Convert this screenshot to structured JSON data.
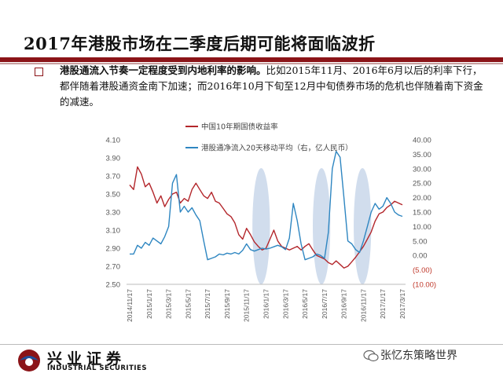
{
  "slide": {
    "title": "2017年港股市场在二季度后期可能将面临波折",
    "bullet_bold": "港股通流入节奏一定程度受到内地利率的影响。",
    "bullet_text": "比如2015年11月、2016年6月以后的利率下行，都伴随着港股通资金南下加速；而2016年10月下旬至12月中旬债券市场的危机也伴随着南下资金的减速。"
  },
  "footer": {
    "logo_cn": "兴业证券",
    "logo_en": "INDUSTRIAL SECURITIES",
    "watermark": "张忆东策略世界"
  },
  "colors": {
    "accent": "#8b1418",
    "series_red": "#b3262b",
    "series_blue": "#2e86c1",
    "highlight": "#c9d7ea"
  },
  "chart_data": {
    "type": "line",
    "legend": [
      "中国10年期国债收益率",
      "港股通净流入20天移动平均（右，亿人民币）"
    ],
    "x_tick_labels": [
      "2014/11/17",
      "2015/1/17",
      "2015/3/17",
      "2015/5/17",
      "2015/7/17",
      "2015/9/17",
      "2015/11/17",
      "2016/1/17",
      "2016/3/17",
      "2016/5/17",
      "2016/7/17",
      "2016/9/17",
      "2016/11/17",
      "2017/1/17",
      "2017/3/17"
    ],
    "left_axis": {
      "min": 2.5,
      "max": 4.1,
      "ticks": [
        "2.50",
        "2.70",
        "2.90",
        "3.10",
        "3.30",
        "3.50",
        "3.70",
        "3.90",
        "4.10"
      ]
    },
    "right_axis": {
      "min": -10,
      "max": 40,
      "ticks": [
        "(10.00)",
        "(5.00)",
        "0.00",
        "5.00",
        "10.00",
        "15.00",
        "20.00",
        "25.00",
        "30.00",
        "35.00",
        "40.00"
      ]
    },
    "series": [
      {
        "name": "中国10年期国债收益率",
        "axis": "left",
        "color": "#b3262b",
        "x": [
          0.0,
          0.2,
          0.4,
          0.6,
          0.8,
          1.0,
          1.2,
          1.4,
          1.6,
          1.8,
          2.0,
          2.2,
          2.4,
          2.6,
          2.8,
          3.0,
          3.2,
          3.4,
          3.6,
          3.8,
          4.0,
          4.2,
          4.4,
          4.6,
          4.8,
          5.0,
          5.2,
          5.4,
          5.6,
          5.8,
          6.0,
          6.2,
          6.4,
          6.6,
          6.8,
          7.0,
          7.2,
          7.4,
          7.6,
          7.8,
          8.0,
          8.2,
          8.4,
          8.6,
          8.8,
          9.0,
          9.2,
          9.4,
          9.6,
          9.8,
          10.0,
          10.2,
          10.4,
          10.6,
          10.8,
          11.0,
          11.2,
          11.4,
          11.6,
          11.8,
          12.0,
          12.2,
          12.4,
          12.6,
          12.8,
          13.0,
          13.2,
          13.4,
          13.6,
          13.8,
          14.0
        ],
        "values": [
          3.6,
          3.55,
          3.8,
          3.72,
          3.58,
          3.62,
          3.52,
          3.4,
          3.48,
          3.36,
          3.44,
          3.5,
          3.52,
          3.4,
          3.45,
          3.42,
          3.55,
          3.62,
          3.55,
          3.48,
          3.45,
          3.52,
          3.42,
          3.4,
          3.34,
          3.28,
          3.25,
          3.18,
          3.05,
          3.0,
          3.12,
          3.05,
          2.97,
          2.92,
          2.88,
          2.9,
          3.0,
          3.1,
          2.98,
          2.92,
          2.9,
          2.88,
          2.9,
          2.92,
          2.88,
          2.92,
          2.95,
          2.88,
          2.82,
          2.8,
          2.78,
          2.74,
          2.72,
          2.76,
          2.72,
          2.68,
          2.7,
          2.75,
          2.8,
          2.86,
          2.92,
          3.0,
          3.08,
          3.2,
          3.28,
          3.3,
          3.35,
          3.38,
          3.42,
          3.4,
          3.38
        ]
      },
      {
        "name": "港股通净流入20天移动平均（右，亿人民币）",
        "axis": "right",
        "color": "#2e86c1",
        "x": [
          0.0,
          0.2,
          0.4,
          0.6,
          0.8,
          1.0,
          1.2,
          1.4,
          1.6,
          1.8,
          2.0,
          2.2,
          2.4,
          2.6,
          2.8,
          3.0,
          3.2,
          3.4,
          3.6,
          3.8,
          4.0,
          4.2,
          4.4,
          4.6,
          4.8,
          5.0,
          5.2,
          5.4,
          5.6,
          5.8,
          6.0,
          6.2,
          6.4,
          6.6,
          6.8,
          7.0,
          7.2,
          7.4,
          7.6,
          7.8,
          8.0,
          8.2,
          8.4,
          8.6,
          8.8,
          9.0,
          9.2,
          9.4,
          9.6,
          9.8,
          10.0,
          10.2,
          10.4,
          10.6,
          10.8,
          11.0,
          11.2,
          11.4,
          11.6,
          11.8,
          12.0,
          12.2,
          12.4,
          12.6,
          12.8,
          13.0,
          13.2,
          13.4,
          13.6,
          13.8,
          14.0
        ],
        "values": [
          0.5,
          0.5,
          3.5,
          2.5,
          4.5,
          3.5,
          6.0,
          5.0,
          4.0,
          6.5,
          10.0,
          25.0,
          28.0,
          15.0,
          17.0,
          15.0,
          16.5,
          14.0,
          12.0,
          5.0,
          -1.5,
          -1.0,
          -0.5,
          0.5,
          0.2,
          0.8,
          0.5,
          1.0,
          0.5,
          1.8,
          4.0,
          2.0,
          1.5,
          2.0,
          2.5,
          2.2,
          2.5,
          3.0,
          3.5,
          3.0,
          2.0,
          6.0,
          18.0,
          12.0,
          4.0,
          -1.5,
          -1.0,
          -0.5,
          0.5,
          0.0,
          -1.0,
          8.0,
          30.0,
          36.0,
          34.0,
          20.0,
          5.0,
          4.0,
          2.0,
          1.0,
          5.0,
          10.0,
          15.0,
          18.0,
          16.0,
          17.0,
          20.0,
          18.0,
          15.0,
          14.0,
          13.5
        ]
      }
    ],
    "highlights": [
      {
        "x_from": 6.3,
        "x_to": 7.2
      },
      {
        "x_from": 9.4,
        "x_to": 10.3
      },
      {
        "x_from": 11.5,
        "x_to": 12.4
      }
    ]
  }
}
